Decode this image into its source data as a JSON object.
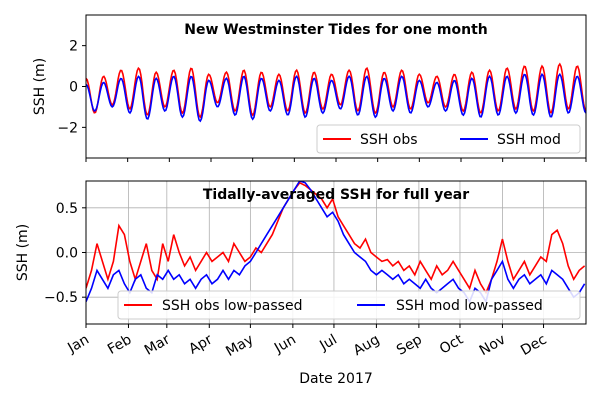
{
  "chart_data": [
    {
      "type": "line",
      "title": "New Westminster Tides for one month",
      "ylabel": "SSH (m)",
      "ylim": [
        -3.5,
        3.5
      ],
      "yticks": [
        -2,
        0,
        2
      ],
      "x_range_days": [
        0,
        31
      ],
      "grid": false,
      "legend": "lower-right",
      "series": [
        {
          "name": "SSH obs",
          "color": "#ff0000",
          "sampled_y": [
            0.4,
            -1.3,
            0.5,
            -0.9,
            0.8,
            -1.1,
            0.9,
            -1.4,
            0.7,
            -1.0,
            0.8,
            -1.3,
            0.9,
            -1.5,
            0.6,
            -0.8,
            0.7,
            -1.2,
            0.8,
            -1.4,
            0.7,
            -1.0,
            0.6,
            -1.2,
            0.8,
            -1.3,
            0.7,
            -1.1,
            0.6,
            -0.9,
            0.8,
            -1.2,
            0.9,
            -1.3,
            0.7,
            -1.0,
            0.8,
            -1.1,
            0.6,
            -0.8,
            0.5,
            -1.0,
            0.6,
            -1.2,
            0.7,
            -1.3,
            0.8,
            -1.2,
            0.9,
            -1.1,
            1.0,
            -1.2,
            1.0,
            -1.3,
            1.1,
            -1.1,
            1.0,
            -1.2
          ]
        },
        {
          "name": "SSH mod",
          "color": "#0000ff",
          "sampled_y": [
            0.1,
            -1.2,
            0.2,
            -1.0,
            0.4,
            -1.3,
            0.5,
            -1.6,
            0.4,
            -1.2,
            0.5,
            -1.5,
            0.5,
            -1.7,
            0.3,
            -1.0,
            0.4,
            -1.4,
            0.5,
            -1.6,
            0.4,
            -1.2,
            0.3,
            -1.4,
            0.5,
            -1.5,
            0.4,
            -1.3,
            0.3,
            -1.1,
            0.5,
            -1.4,
            0.5,
            -1.5,
            0.4,
            -1.2,
            0.5,
            -1.3,
            0.3,
            -1.0,
            0.2,
            -1.2,
            0.3,
            -1.4,
            0.4,
            -1.5,
            0.5,
            -1.4,
            0.5,
            -1.3,
            0.6,
            -1.4,
            0.6,
            -1.5,
            0.6,
            -1.3,
            0.5,
            -1.3
          ]
        }
      ]
    },
    {
      "type": "line",
      "title": "Tidally-averaged SSH for full year",
      "xlabel": "Date 2017",
      "ylabel": "SSH (m)",
      "ylim": [
        -0.8,
        0.8
      ],
      "yticks": [
        -0.5,
        0.0,
        0.5
      ],
      "ytick_labels": [
        "−0.5",
        "0.0",
        "0.5"
      ],
      "categories": [
        "Jan",
        "Feb",
        "Mar",
        "Apr",
        "May",
        "Jun",
        "Jul",
        "Aug",
        "Sep",
        "Oct",
        "Nov",
        "Dec"
      ],
      "grid": true,
      "legend": "lower-center",
      "series": [
        {
          "name": "SSH obs low-passed",
          "color": "#ff0000",
          "points": [
            [
              0,
              -0.4
            ],
            [
              4,
              -0.2
            ],
            [
              8,
              0.1
            ],
            [
              12,
              -0.1
            ],
            [
              16,
              -0.3
            ],
            [
              20,
              -0.1
            ],
            [
              24,
              0.3
            ],
            [
              28,
              0.2
            ],
            [
              32,
              -0.1
            ],
            [
              36,
              -0.3
            ],
            [
              40,
              -0.1
            ],
            [
              44,
              0.1
            ],
            [
              48,
              -0.2
            ],
            [
              52,
              -0.3
            ],
            [
              56,
              0.1
            ],
            [
              60,
              -0.1
            ],
            [
              64,
              0.2
            ],
            [
              68,
              0.0
            ],
            [
              72,
              -0.15
            ],
            [
              76,
              -0.05
            ],
            [
              80,
              -0.2
            ],
            [
              84,
              -0.1
            ],
            [
              88,
              0.0
            ],
            [
              92,
              -0.1
            ],
            [
              96,
              -0.05
            ],
            [
              100,
              0.0
            ],
            [
              104,
              -0.1
            ],
            [
              108,
              0.1
            ],
            [
              112,
              0.0
            ],
            [
              116,
              -0.1
            ],
            [
              120,
              -0.05
            ],
            [
              124,
              0.05
            ],
            [
              128,
              0.0
            ],
            [
              132,
              0.1
            ],
            [
              136,
              0.2
            ],
            [
              140,
              0.35
            ],
            [
              144,
              0.5
            ],
            [
              148,
              0.6
            ],
            [
              152,
              0.7
            ],
            [
              156,
              0.78
            ],
            [
              160,
              0.75
            ],
            [
              164,
              0.7
            ],
            [
              168,
              0.65
            ],
            [
              172,
              0.6
            ],
            [
              176,
              0.5
            ],
            [
              180,
              0.6
            ],
            [
              184,
              0.4
            ],
            [
              188,
              0.3
            ],
            [
              192,
              0.2
            ],
            [
              196,
              0.1
            ],
            [
              200,
              0.05
            ],
            [
              204,
              0.15
            ],
            [
              208,
              0.0
            ],
            [
              212,
              -0.05
            ],
            [
              216,
              -0.1
            ],
            [
              220,
              -0.08
            ],
            [
              224,
              -0.15
            ],
            [
              228,
              -0.1
            ],
            [
              232,
              -0.2
            ],
            [
              236,
              -0.15
            ],
            [
              240,
              -0.25
            ],
            [
              244,
              -0.1
            ],
            [
              248,
              -0.2
            ],
            [
              252,
              -0.3
            ],
            [
              256,
              -0.15
            ],
            [
              260,
              -0.25
            ],
            [
              264,
              -0.2
            ],
            [
              268,
              -0.1
            ],
            [
              272,
              -0.2
            ],
            [
              276,
              -0.3
            ],
            [
              280,
              -0.4
            ],
            [
              284,
              -0.2
            ],
            [
              288,
              -0.35
            ],
            [
              292,
              -0.45
            ],
            [
              296,
              -0.3
            ],
            [
              300,
              -0.1
            ],
            [
              304,
              0.15
            ],
            [
              308,
              -0.1
            ],
            [
              312,
              -0.3
            ],
            [
              316,
              -0.2
            ],
            [
              320,
              -0.1
            ],
            [
              324,
              -0.25
            ],
            [
              328,
              -0.15
            ],
            [
              332,
              -0.05
            ],
            [
              336,
              -0.1
            ],
            [
              340,
              0.2
            ],
            [
              344,
              0.25
            ],
            [
              348,
              0.1
            ],
            [
              352,
              -0.15
            ],
            [
              356,
              -0.3
            ],
            [
              360,
              -0.2
            ],
            [
              364,
              -0.15
            ]
          ]
        },
        {
          "name": "SSH mod low-passed",
          "color": "#0000ff",
          "points": [
            [
              0,
              -0.55
            ],
            [
              4,
              -0.4
            ],
            [
              8,
              -0.2
            ],
            [
              12,
              -0.3
            ],
            [
              16,
              -0.4
            ],
            [
              20,
              -0.25
            ],
            [
              24,
              -0.2
            ],
            [
              28,
              -0.35
            ],
            [
              32,
              -0.45
            ],
            [
              36,
              -0.3
            ],
            [
              40,
              -0.25
            ],
            [
              44,
              -0.4
            ],
            [
              48,
              -0.45
            ],
            [
              52,
              -0.25
            ],
            [
              56,
              -0.3
            ],
            [
              60,
              -0.2
            ],
            [
              64,
              -0.3
            ],
            [
              68,
              -0.25
            ],
            [
              72,
              -0.35
            ],
            [
              76,
              -0.3
            ],
            [
              80,
              -0.4
            ],
            [
              84,
              -0.3
            ],
            [
              88,
              -0.25
            ],
            [
              92,
              -0.35
            ],
            [
              96,
              -0.3
            ],
            [
              100,
              -0.2
            ],
            [
              104,
              -0.3
            ],
            [
              108,
              -0.2
            ],
            [
              112,
              -0.25
            ],
            [
              116,
              -0.15
            ],
            [
              120,
              -0.1
            ],
            [
              124,
              0.0
            ],
            [
              128,
              0.1
            ],
            [
              132,
              0.2
            ],
            [
              136,
              0.3
            ],
            [
              140,
              0.4
            ],
            [
              144,
              0.5
            ],
            [
              148,
              0.6
            ],
            [
              152,
              0.7
            ],
            [
              156,
              0.8
            ],
            [
              160,
              0.78
            ],
            [
              164,
              0.7
            ],
            [
              168,
              0.6
            ],
            [
              172,
              0.5
            ],
            [
              176,
              0.4
            ],
            [
              180,
              0.45
            ],
            [
              184,
              0.35
            ],
            [
              188,
              0.2
            ],
            [
              192,
              0.1
            ],
            [
              196,
              0.0
            ],
            [
              200,
              -0.05
            ],
            [
              204,
              -0.1
            ],
            [
              208,
              -0.2
            ],
            [
              212,
              -0.25
            ],
            [
              216,
              -0.2
            ],
            [
              220,
              -0.25
            ],
            [
              224,
              -0.3
            ],
            [
              228,
              -0.25
            ],
            [
              232,
              -0.35
            ],
            [
              236,
              -0.3
            ],
            [
              240,
              -0.35
            ],
            [
              244,
              -0.4
            ],
            [
              248,
              -0.3
            ],
            [
              252,
              -0.4
            ],
            [
              256,
              -0.45
            ],
            [
              260,
              -0.4
            ],
            [
              264,
              -0.35
            ],
            [
              268,
              -0.3
            ],
            [
              272,
              -0.4
            ],
            [
              276,
              -0.45
            ],
            [
              280,
              -0.55
            ],
            [
              284,
              -0.4
            ],
            [
              288,
              -0.45
            ],
            [
              292,
              -0.55
            ],
            [
              296,
              -0.3
            ],
            [
              300,
              -0.2
            ],
            [
              304,
              -0.1
            ],
            [
              308,
              -0.3
            ],
            [
              312,
              -0.4
            ],
            [
              316,
              -0.3
            ],
            [
              320,
              -0.25
            ],
            [
              324,
              -0.35
            ],
            [
              328,
              -0.3
            ],
            [
              332,
              -0.25
            ],
            [
              336,
              -0.35
            ],
            [
              340,
              -0.2
            ],
            [
              344,
              -0.25
            ],
            [
              348,
              -0.3
            ],
            [
              352,
              -0.4
            ],
            [
              356,
              -0.5
            ],
            [
              360,
              -0.45
            ],
            [
              364,
              -0.35
            ]
          ]
        }
      ]
    }
  ]
}
